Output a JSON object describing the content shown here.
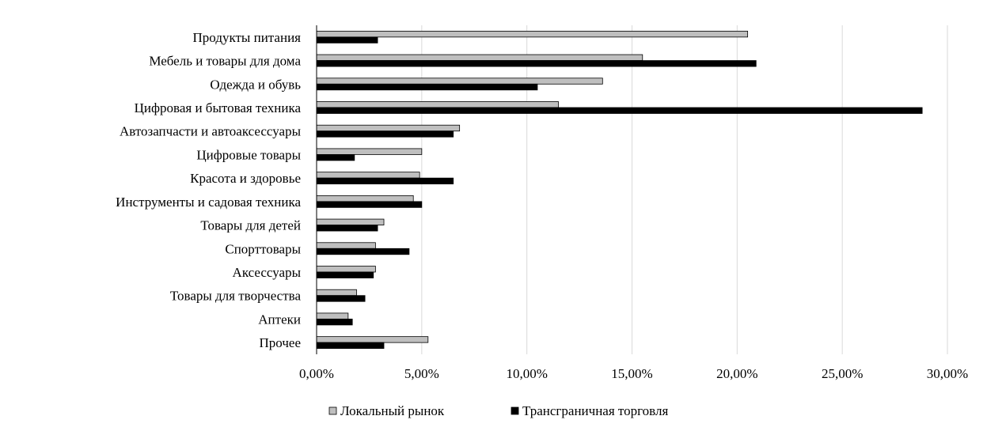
{
  "chart_data": {
    "type": "bar",
    "orientation": "horizontal",
    "title": "",
    "xlabel": "",
    "ylabel": "",
    "xlim": [
      0,
      30
    ],
    "x_ticks": [
      "0,00%",
      "5,00%",
      "10,00%",
      "15,00%",
      "20,00%",
      "25,00%",
      "30,00%"
    ],
    "grid": true,
    "legend_position": "bottom",
    "categories": [
      "Продукты питания",
      "Мебель и товары для дома",
      "Одежда и обувь",
      "Цифровая и бытовая техника",
      "Автозапчасти и автоаксессуары",
      "Цифровые товары",
      "Красота и здоровье",
      "Инструменты и садовая техника",
      "Товары для детей",
      "Спорттовары",
      "Аксессуары",
      "Товары для творчества",
      "Аптеки",
      "Прочее"
    ],
    "series": [
      {
        "name": "Локальный рынок",
        "color": "#bfbfbf",
        "values": [
          20.5,
          15.5,
          13.6,
          11.5,
          6.8,
          5.0,
          4.9,
          4.6,
          3.2,
          2.8,
          2.8,
          1.9,
          1.5,
          5.3
        ]
      },
      {
        "name": "Трансграничная торговля",
        "color": "#000000",
        "values": [
          2.9,
          20.9,
          10.5,
          28.8,
          6.5,
          1.8,
          6.5,
          5.0,
          2.9,
          4.4,
          2.7,
          2.3,
          1.7,
          3.2
        ]
      }
    ]
  }
}
